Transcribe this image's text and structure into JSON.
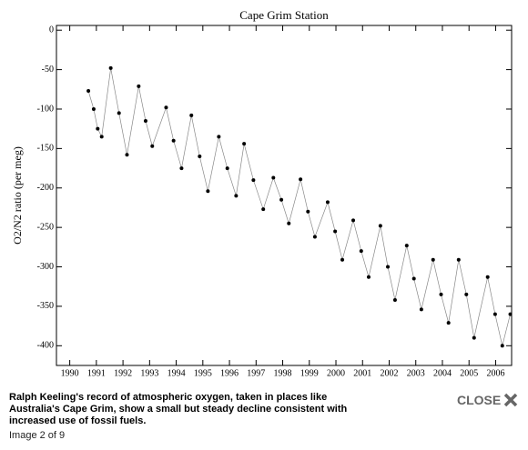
{
  "chart_data": {
    "type": "scatter",
    "title": "Cape Grim Station",
    "y_label": "O2/N2 ratio (per meg)",
    "x": [
      1990.7,
      1990.9,
      1991.05,
      1991.2,
      1991.54,
      1991.85,
      1992.15,
      1992.59,
      1992.85,
      1993.1,
      1993.62,
      1993.9,
      1994.2,
      1994.57,
      1994.88,
      1995.19,
      1995.6,
      1995.92,
      1996.25,
      1996.55,
      1996.9,
      1997.27,
      1997.65,
      1997.95,
      1998.23,
      1998.67,
      1998.95,
      1999.21,
      1999.69,
      1999.97,
      2000.24,
      2000.65,
      2000.95,
      2001.23,
      2001.67,
      2001.95,
      2002.22,
      2002.66,
      2002.93,
      2003.21,
      2003.65,
      2003.95,
      2004.23,
      2004.61,
      2004.9,
      2005.19,
      2005.7,
      2005.98,
      2006.25,
      2006.55
    ],
    "values": [
      -77,
      -100,
      -125,
      -135,
      -48,
      -105,
      -158,
      -71,
      -115,
      -147,
      -98,
      -140,
      -175,
      -108,
      -160,
      -204,
      -135,
      -175,
      -210,
      -144,
      -190,
      -227,
      -187,
      -215,
      -245,
      -189,
      -230,
      -262,
      -218,
      -255,
      -291,
      -241,
      -280,
      -313,
      -248,
      -300,
      -342,
      -273,
      -315,
      -354,
      -291,
      -335,
      -371,
      -291,
      -335,
      -390,
      -313,
      -360,
      -400,
      -360
    ],
    "color": "#000000",
    "line_color": "#888888",
    "line": true,
    "xlim": [
      1989.5,
      2006.6
    ],
    "xticks": [
      1990,
      1991,
      1992,
      1993,
      1994,
      1995,
      1996,
      1997,
      1998,
      1999,
      2000,
      2001,
      2002,
      2003,
      2004,
      2005,
      2006
    ],
    "ylim": [
      -425,
      6
    ],
    "yticks": [
      0,
      -50,
      -100,
      -150,
      -200,
      -250,
      -300,
      -350,
      -400
    ]
  },
  "caption": {
    "text": "Ralph Keeling's record of atmospheric oxygen, taken in places like Australia's Cape Grim, show a small but steady decline consistent with increased use of fossil fuels.",
    "counter": "Image 2 of 9",
    "close": "CLOSE"
  }
}
